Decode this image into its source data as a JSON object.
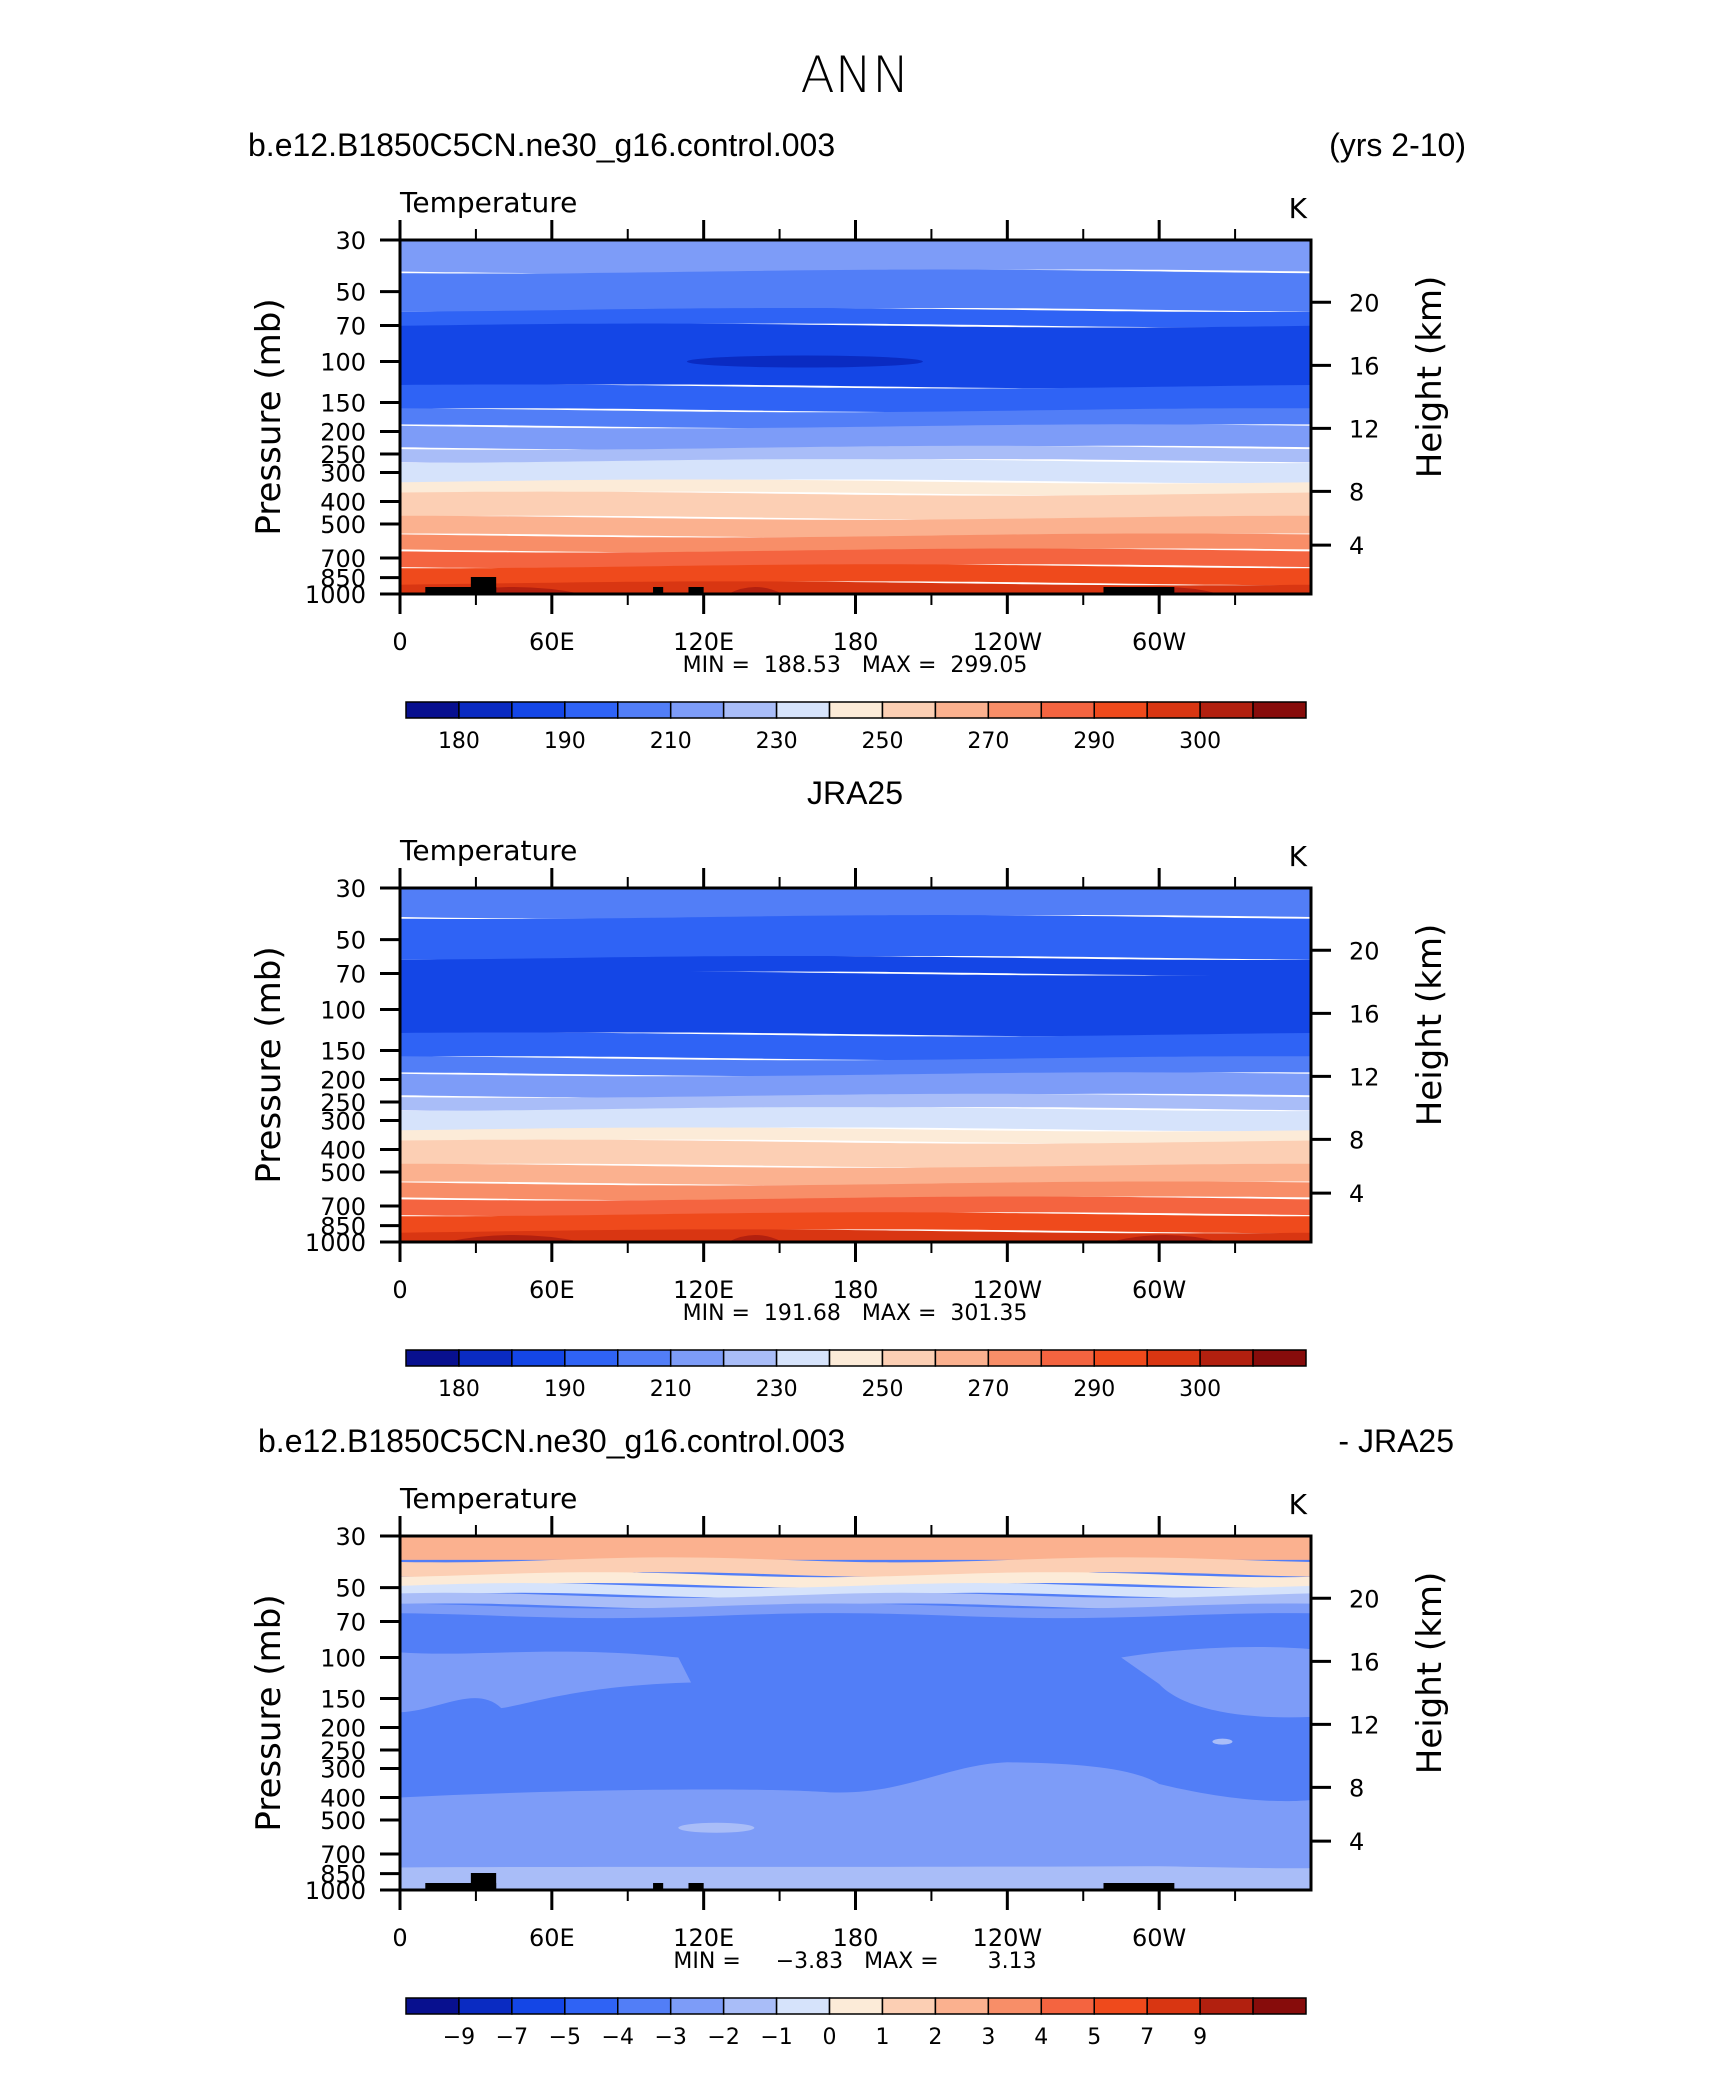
{
  "page_title": "ANN",
  "colormaps": {
    "absolute": {
      "colors": [
        "#08108f",
        "#0a2bc2",
        "#1446e6",
        "#2f63f5",
        "#527ef7",
        "#7d9cf8",
        "#a9bdf8",
        "#d6e3fb",
        "#fcebd8",
        "#fccfb4",
        "#fbb18f",
        "#f88e68",
        "#f46440",
        "#ef4a1c",
        "#d93612",
        "#b2200f",
        "#870c0b"
      ],
      "labels": [
        "180",
        "190",
        "210",
        "230",
        "250",
        "270",
        "290",
        "300"
      ]
    },
    "difference": {
      "colors": [
        "#08108f",
        "#0a2bc2",
        "#1446e6",
        "#2f63f5",
        "#527ef7",
        "#7d9cf8",
        "#a9bdf8",
        "#d6e3fb",
        "#fcebd8",
        "#fccfb4",
        "#fbb18f",
        "#f88e68",
        "#f46440",
        "#ef4a1c",
        "#d93612",
        "#b2200f",
        "#870c0b"
      ],
      "labels": [
        "−9",
        "−7",
        "−5",
        "−4",
        "−3",
        "−2",
        "−1",
        "0",
        "1",
        "2",
        "3",
        "4",
        "5",
        "7",
        "9"
      ]
    }
  },
  "panels": [
    {
      "id": "model",
      "header_left": "b.e12.B1850C5CN.ne30_g16.control.003",
      "header_right": "(yrs 2-10)",
      "header_center": "",
      "variable": "Temperature",
      "units": "K",
      "min_max": "MIN =  188.53   MAX =  299.05",
      "colormap": "absolute"
    },
    {
      "id": "obs",
      "header_left": "",
      "header_right": "",
      "header_center": "JRA25",
      "variable": "Temperature",
      "units": "K",
      "min_max": "MIN =  191.68   MAX =  301.35",
      "colormap": "absolute"
    },
    {
      "id": "diff",
      "header_left": "b.e12.B1850C5CN.ne30_g16.control.003",
      "header_right": "- JRA25",
      "header_center": "",
      "variable": "Temperature",
      "units": "K",
      "min_max": "MIN =     −3.83   MAX =       3.13",
      "colormap": "difference"
    }
  ],
  "chart_data": [
    {
      "type": "heatmap",
      "title": "Temperature",
      "panel": "model",
      "ylabel": "Pressure  (mb)",
      "ylabel_right": "Height  (km)",
      "xlabel": "",
      "x_ticks": [
        "0",
        "60E",
        "120E",
        "180",
        "120W",
        "60W"
      ],
      "x_tick_values": [
        0,
        60,
        120,
        180,
        240,
        300
      ],
      "xlim": [
        0,
        360
      ],
      "y_ticks": [
        "30",
        "50",
        "70",
        "100",
        "150",
        "200",
        "250",
        "300",
        "400",
        "500",
        "700",
        "850",
        "1000"
      ],
      "y_tick_values": [
        30,
        50,
        70,
        100,
        150,
        200,
        250,
        300,
        400,
        500,
        700,
        850,
        1000
      ],
      "ylim": [
        1000,
        30
      ],
      "height_ticks": [
        "20",
        "16",
        "12",
        "8",
        "4"
      ],
      "height_tick_values": [
        20,
        16,
        12,
        8,
        4
      ],
      "min": 188.53,
      "max": 299.05
    },
    {
      "type": "heatmap",
      "title": "Temperature",
      "panel": "obs",
      "ylabel": "Pressure  (mb)",
      "ylabel_right": "Height  (km)",
      "xlabel": "",
      "x_ticks": [
        "0",
        "60E",
        "120E",
        "180",
        "120W",
        "60W"
      ],
      "x_tick_values": [
        0,
        60,
        120,
        180,
        240,
        300
      ],
      "xlim": [
        0,
        360
      ],
      "y_ticks": [
        "30",
        "50",
        "70",
        "100",
        "150",
        "200",
        "250",
        "300",
        "400",
        "500",
        "700",
        "850",
        "1000"
      ],
      "y_tick_values": [
        30,
        50,
        70,
        100,
        150,
        200,
        250,
        300,
        400,
        500,
        700,
        850,
        1000
      ],
      "ylim": [
        1000,
        30
      ],
      "height_ticks": [
        "20",
        "16",
        "12",
        "8",
        "4"
      ],
      "height_tick_values": [
        20,
        16,
        12,
        8,
        4
      ],
      "min": 191.68,
      "max": 301.35
    },
    {
      "type": "heatmap",
      "title": "Temperature",
      "panel": "diff",
      "ylabel": "Pressure  (mb)",
      "ylabel_right": "Height  (km)",
      "xlabel": "",
      "x_ticks": [
        "0",
        "60E",
        "120E",
        "180",
        "120W",
        "60W"
      ],
      "x_tick_values": [
        0,
        60,
        120,
        180,
        240,
        300
      ],
      "xlim": [
        0,
        360
      ],
      "y_ticks": [
        "30",
        "50",
        "70",
        "100",
        "150",
        "200",
        "250",
        "300",
        "400",
        "500",
        "700",
        "850",
        "1000"
      ],
      "y_tick_values": [
        30,
        50,
        70,
        100,
        150,
        200,
        250,
        300,
        400,
        500,
        700,
        850,
        1000
      ],
      "ylim": [
        1000,
        30
      ],
      "height_ticks": [
        "20",
        "16",
        "12",
        "8",
        "4"
      ],
      "height_tick_values": [
        20,
        16,
        12,
        8,
        4
      ],
      "min": -3.83,
      "max": 3.13
    }
  ]
}
